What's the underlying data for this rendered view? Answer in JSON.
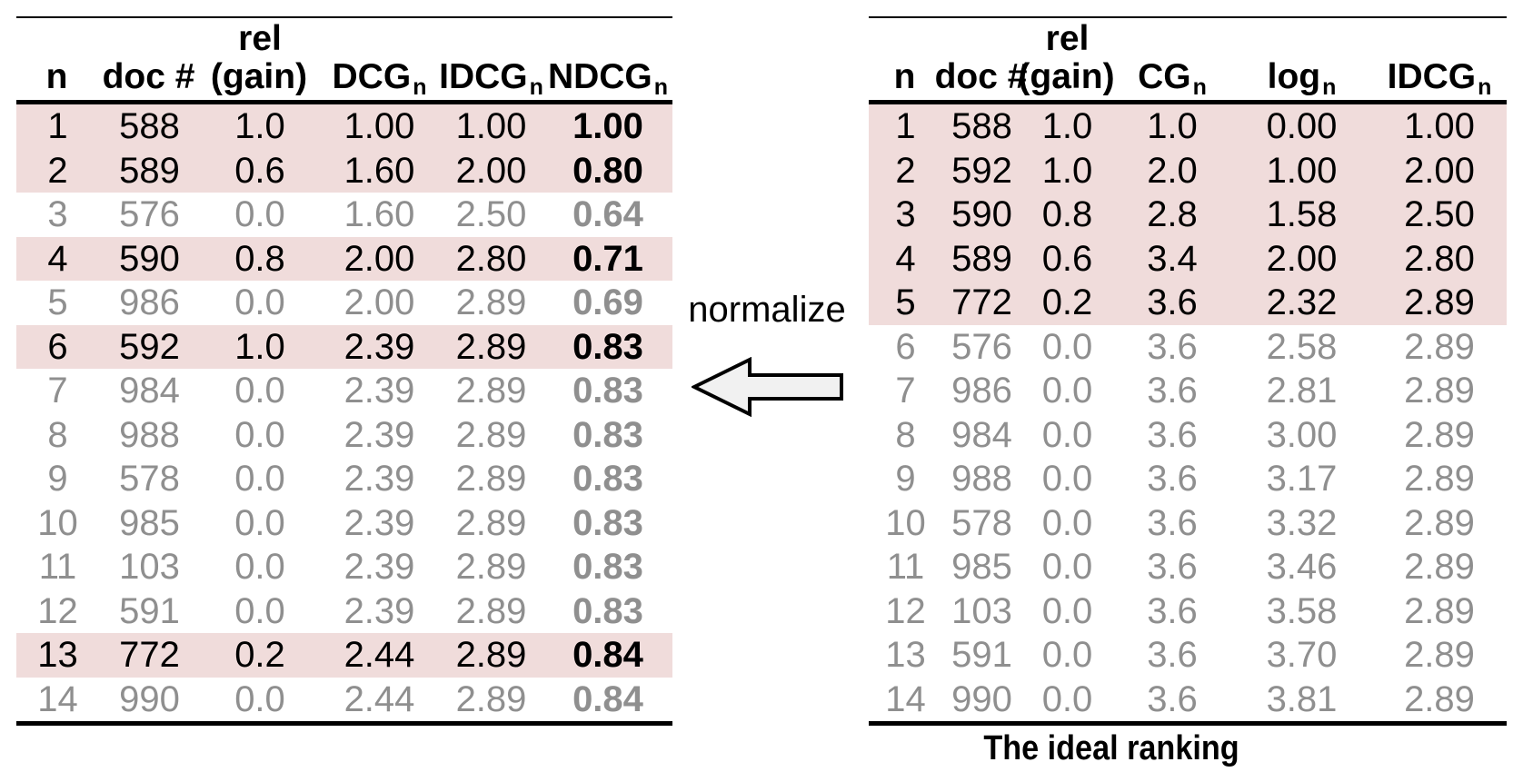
{
  "left_table": {
    "headers": [
      {
        "main": "n"
      },
      {
        "main": "doc #"
      },
      {
        "top": "rel",
        "main": "(gain)"
      },
      {
        "main": "DCG",
        "sub": "n"
      },
      {
        "main": "IDCG",
        "sub": "n"
      },
      {
        "main": "NDCG",
        "sub": "n"
      }
    ],
    "rows": [
      {
        "highlight": true,
        "cells": [
          "1",
          "588",
          "1.0",
          "1.00",
          "1.00",
          "1.00"
        ]
      },
      {
        "highlight": true,
        "cells": [
          "2",
          "589",
          "0.6",
          "1.60",
          "2.00",
          "0.80"
        ]
      },
      {
        "highlight": false,
        "cells": [
          "3",
          "576",
          "0.0",
          "1.60",
          "2.50",
          "0.64"
        ]
      },
      {
        "highlight": true,
        "cells": [
          "4",
          "590",
          "0.8",
          "2.00",
          "2.80",
          "0.71"
        ]
      },
      {
        "highlight": false,
        "cells": [
          "5",
          "986",
          "0.0",
          "2.00",
          "2.89",
          "0.69"
        ]
      },
      {
        "highlight": true,
        "cells": [
          "6",
          "592",
          "1.0",
          "2.39",
          "2.89",
          "0.83"
        ]
      },
      {
        "highlight": false,
        "cells": [
          "7",
          "984",
          "0.0",
          "2.39",
          "2.89",
          "0.83"
        ]
      },
      {
        "highlight": false,
        "cells": [
          "8",
          "988",
          "0.0",
          "2.39",
          "2.89",
          "0.83"
        ]
      },
      {
        "highlight": false,
        "cells": [
          "9",
          "578",
          "0.0",
          "2.39",
          "2.89",
          "0.83"
        ]
      },
      {
        "highlight": false,
        "cells": [
          "10",
          "985",
          "0.0",
          "2.39",
          "2.89",
          "0.83"
        ]
      },
      {
        "highlight": false,
        "cells": [
          "11",
          "103",
          "0.0",
          "2.39",
          "2.89",
          "0.83"
        ]
      },
      {
        "highlight": false,
        "cells": [
          "12",
          "591",
          "0.0",
          "2.39",
          "2.89",
          "0.83"
        ]
      },
      {
        "highlight": true,
        "cells": [
          "13",
          "772",
          "0.2",
          "2.44",
          "2.89",
          "0.84"
        ]
      },
      {
        "highlight": false,
        "cells": [
          "14",
          "990",
          "0.0",
          "2.44",
          "2.89",
          "0.84"
        ]
      }
    ]
  },
  "right_table": {
    "headers": [
      {
        "main": "n"
      },
      {
        "main": "doc #"
      },
      {
        "top": "rel",
        "main": "(gain)"
      },
      {
        "main": "CG",
        "sub": "n"
      },
      {
        "main": "log",
        "sub": "n"
      },
      {
        "main": "IDCG",
        "sub": "n"
      }
    ],
    "rows": [
      {
        "highlight": true,
        "cells": [
          "1",
          "588",
          "1.0",
          "1.0",
          "0.00",
          "1.00"
        ]
      },
      {
        "highlight": true,
        "cells": [
          "2",
          "592",
          "1.0",
          "2.0",
          "1.00",
          "2.00"
        ]
      },
      {
        "highlight": true,
        "cells": [
          "3",
          "590",
          "0.8",
          "2.8",
          "1.58",
          "2.50"
        ]
      },
      {
        "highlight": true,
        "cells": [
          "4",
          "589",
          "0.6",
          "3.4",
          "2.00",
          "2.80"
        ]
      },
      {
        "highlight": true,
        "cells": [
          "5",
          "772",
          "0.2",
          "3.6",
          "2.32",
          "2.89"
        ]
      },
      {
        "highlight": false,
        "cells": [
          "6",
          "576",
          "0.0",
          "3.6",
          "2.58",
          "2.89"
        ]
      },
      {
        "highlight": false,
        "cells": [
          "7",
          "986",
          "0.0",
          "3.6",
          "2.81",
          "2.89"
        ]
      },
      {
        "highlight": false,
        "cells": [
          "8",
          "984",
          "0.0",
          "3.6",
          "3.00",
          "2.89"
        ]
      },
      {
        "highlight": false,
        "cells": [
          "9",
          "988",
          "0.0",
          "3.6",
          "3.17",
          "2.89"
        ]
      },
      {
        "highlight": false,
        "cells": [
          "10",
          "578",
          "0.0",
          "3.6",
          "3.32",
          "2.89"
        ]
      },
      {
        "highlight": false,
        "cells": [
          "11",
          "985",
          "0.0",
          "3.6",
          "3.46",
          "2.89"
        ]
      },
      {
        "highlight": false,
        "cells": [
          "12",
          "103",
          "0.0",
          "3.6",
          "3.58",
          "2.89"
        ]
      },
      {
        "highlight": false,
        "cells": [
          "13",
          "591",
          "0.0",
          "3.6",
          "3.70",
          "2.89"
        ]
      },
      {
        "highlight": false,
        "cells": [
          "14",
          "990",
          "0.0",
          "3.6",
          "3.81",
          "2.89"
        ]
      }
    ],
    "caption": "The ideal ranking"
  },
  "middle": {
    "label": "normalize",
    "arrow_icon": "left-block-arrow"
  },
  "colors": {
    "highlight": "#f0dcdb",
    "muted_text": "#8f8f8f",
    "text": "#000000",
    "arrow_fill": "#f1f1f1"
  }
}
